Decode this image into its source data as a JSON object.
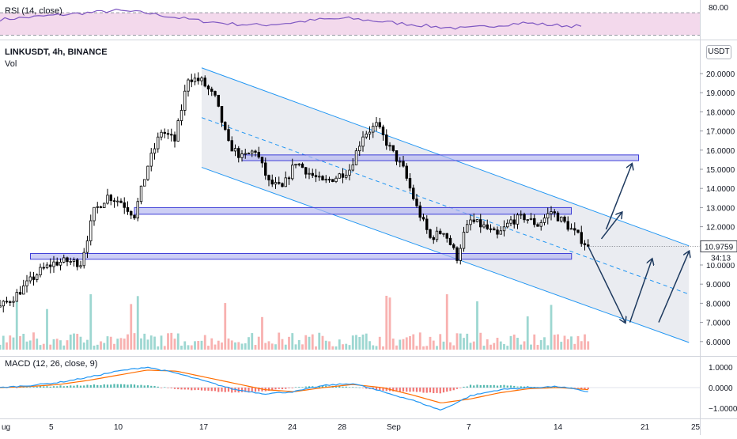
{
  "rsi_panel": {
    "title": "RSI (14, close)",
    "ticks": [
      80.0
    ],
    "tick_labels": [
      "80.00"
    ],
    "band": [
      30,
      70
    ],
    "range": [
      25,
      90
    ]
  },
  "main_panel": {
    "title": "LINKUSDT, 4h, BINANCE",
    "volume_label": "Vol",
    "currency_tag": "USDT",
    "last_price": "10.9759",
    "countdown": "34:13",
    "y_ticks": [
      20,
      19,
      18,
      17,
      16,
      15,
      14,
      13,
      12,
      11,
      10,
      9,
      8,
      7,
      6
    ],
    "y_tick_labels": [
      "20.0000",
      "19.0000",
      "18.0000",
      "17.0000",
      "16.0000",
      "15.0000",
      "14.0000",
      "13.0000",
      "12.0000",
      "11.0000",
      "10.0000",
      "9.0000",
      "8.0000",
      "7.0000",
      "6.0000"
    ]
  },
  "macd_panel": {
    "title": "MACD (12, 26, close, 9)",
    "y_ticks": [
      1,
      0,
      -1
    ],
    "y_tick_labels": [
      "1.0000",
      "0.0000",
      "−1.0000"
    ]
  },
  "x_axis": {
    "tick_labels": [
      "ug",
      "5",
      "10",
      "17",
      "24",
      "28",
      "Sep",
      "7",
      "14",
      "21",
      "25"
    ]
  },
  "colors": {
    "up": "#26a69a",
    "down": "#ef5350",
    "candle": "#000000",
    "channel": "#2196f3",
    "zone_fill": "#b2b5f0",
    "zone_border": "#3f3fd8",
    "rsi_line": "#7e57c2",
    "rsi_bg": "#f3d9ec",
    "macd_line": "#2196f3",
    "signal_line": "#ff6d00",
    "arrow": "#1e3a5f"
  },
  "chart_data": [
    {
      "type": "candlestick",
      "title": "LINKUSDT, 4h, BINANCE",
      "x_tick_labels": [
        "ug",
        "5",
        "10",
        "17",
        "24",
        "28",
        "Sep",
        "7",
        "14",
        "21",
        "25"
      ],
      "ylim": [
        5.6,
        20.8
      ],
      "price_path": [
        [
          0,
          7.8
        ],
        [
          4,
          8.3
        ],
        [
          8,
          9.0
        ],
        [
          12,
          9.7
        ],
        [
          16,
          10.1
        ],
        [
          20,
          10.2
        ],
        [
          24,
          10.1
        ],
        [
          28,
          12.8
        ],
        [
          32,
          13.6
        ],
        [
          36,
          13.3
        ],
        [
          40,
          12.6
        ],
        [
          44,
          15.2
        ],
        [
          48,
          17.0
        ],
        [
          52,
          16.5
        ],
        [
          56,
          19.8
        ],
        [
          60,
          19.6
        ],
        [
          64,
          18.7
        ],
        [
          68,
          16.3
        ],
        [
          72,
          15.6
        ],
        [
          76,
          16.0
        ],
        [
          80,
          14.3
        ],
        [
          84,
          14.0
        ],
        [
          88,
          15.4
        ],
        [
          92,
          14.8
        ],
        [
          96,
          14.3
        ],
        [
          100,
          14.6
        ],
        [
          104,
          15.0
        ],
        [
          108,
          16.8
        ],
        [
          112,
          17.3
        ],
        [
          116,
          16.1
        ],
        [
          120,
          15.0
        ],
        [
          124,
          13.0
        ],
        [
          128,
          11.4
        ],
        [
          132,
          11.8
        ],
        [
          136,
          10.4
        ],
        [
          138,
          11.6
        ],
        [
          140,
          12.3
        ],
        [
          144,
          12.0
        ],
        [
          148,
          11.5
        ],
        [
          152,
          12.3
        ],
        [
          156,
          12.5
        ],
        [
          160,
          12.1
        ],
        [
          164,
          12.8
        ],
        [
          168,
          12.2
        ],
        [
          172,
          11.5
        ],
        [
          175,
          10.98
        ]
      ],
      "zones": [
        {
          "low": 10.3,
          "high": 10.6,
          "x_start": 14,
          "x_end": 175
        },
        {
          "low": 12.65,
          "high": 13.0,
          "x_start": 40,
          "x_end": 170
        },
        {
          "low": 15.45,
          "high": 15.75,
          "x_start": 72,
          "x_end": 190
        }
      ],
      "channel": {
        "upper": [
          [
            60,
            20.3
          ],
          [
            205,
            11.0
          ]
        ],
        "lower": [
          [
            60,
            15.1
          ],
          [
            205,
            5.95
          ]
        ]
      },
      "projection": [
        [
          175,
          10.98
        ],
        [
          186,
          7.0
        ],
        [
          194,
          10.3
        ],
        [
          196,
          7.0
        ],
        [
          205,
          10.7
        ]
      ],
      "projection_up": [
        [
          175,
          10.98
        ],
        [
          188,
          15.6
        ],
        [
          178,
          11.2
        ],
        [
          185,
          12.9
        ]
      ],
      "last_price": 10.9759
    },
    {
      "type": "line",
      "title": "RSI (14, close)",
      "series": [
        {
          "name": "RSI",
          "values": [
            58,
            62,
            66,
            70,
            74,
            70,
            62,
            55,
            50,
            48,
            52,
            58,
            60,
            55,
            50,
            45,
            42,
            47,
            52,
            48,
            46
          ]
        }
      ],
      "ylim": [
        25,
        90
      ]
    },
    {
      "type": "line",
      "title": "MACD (12, 26, close, 9)",
      "series": [
        {
          "name": "MACD",
          "values": [
            0.0,
            0.1,
            0.25,
            0.5,
            0.8,
            1.0,
            0.7,
            0.3,
            -0.1,
            -0.3,
            -0.2,
            0.1,
            0.2,
            -0.2,
            -0.6,
            -1.1,
            -0.4,
            -0.1,
            0.0,
            0.05,
            -0.2
          ]
        },
        {
          "name": "Signal",
          "values": [
            0.0,
            0.05,
            0.15,
            0.35,
            0.6,
            0.85,
            0.8,
            0.5,
            0.2,
            -0.1,
            -0.2,
            0.0,
            0.15,
            0.0,
            -0.35,
            -0.75,
            -0.55,
            -0.25,
            -0.05,
            0.0,
            -0.1
          ]
        }
      ],
      "ylim": [
        -1.3,
        1.4
      ]
    }
  ]
}
